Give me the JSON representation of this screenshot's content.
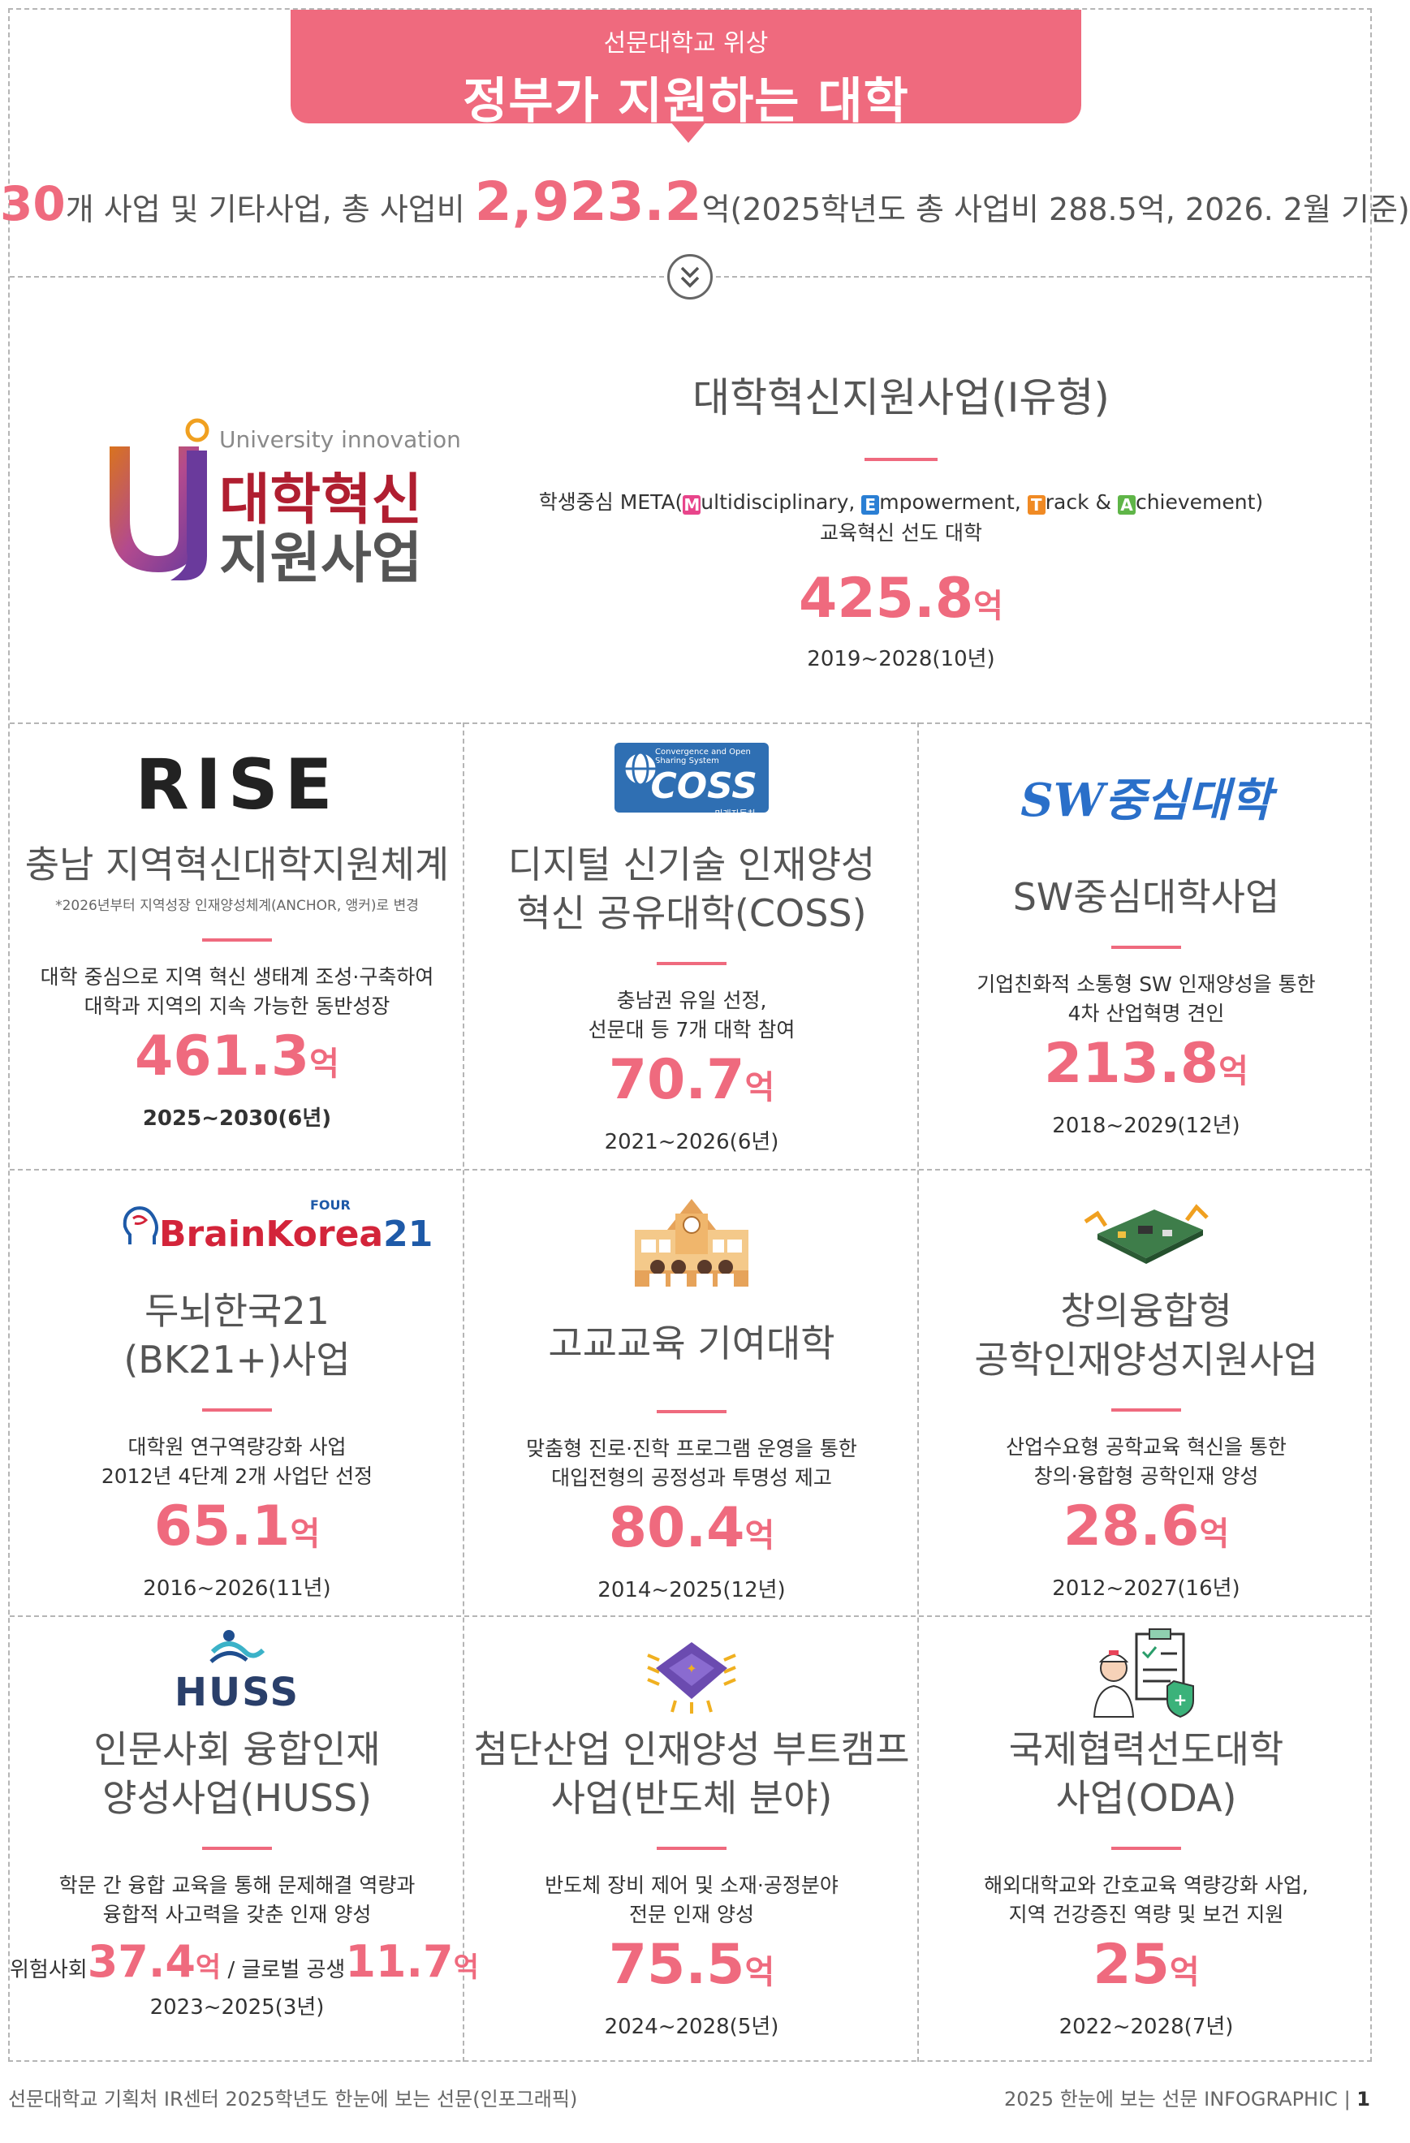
{
  "header": {
    "subtitle": "선문대학교 위상",
    "title": "정부가 지원하는 대학"
  },
  "summary": {
    "count": "30",
    "text1": "개 사업 및 기타사업, 총 사업비 ",
    "total": "2,923.2",
    "text2": "억(2025학년도 총 사업비 288.5억, 2026. 2월 기준)"
  },
  "featured": {
    "logo_sub": "University innovation",
    "logo_line1": "대학혁신",
    "logo_line2": "지원사업",
    "title": "대학혁신지원사업(I유형)",
    "desc_prefix": "학생중심 META(",
    "m_letter": "M",
    "m_rest": "ultidisciplinary, ",
    "e_letter": "E",
    "e_rest": "mpowerment, ",
    "t_letter": "T",
    "t_rest": "rack & ",
    "a_letter": "A",
    "a_rest": "chievement)",
    "desc_line2": "교육혁신 선도 대학",
    "amount": "425.8",
    "unit": "억",
    "period": "2019~2028(10년)"
  },
  "tag_colors": {
    "M": "#e8458b",
    "E": "#2a7fd4",
    "T": "#f08a24",
    "A": "#5fb548"
  },
  "programs": [
    {
      "logo_text": "RISE",
      "title": "충남 지역혁신대학지원체계",
      "note": "*2026년부터 지역성장 인재양성체계(ANCHOR, 앵커)로 변경",
      "desc": [
        "대학 중심으로 지역 혁신 생태계 조성·구축하여",
        "대학과 지역의 지속 가능한 동반성장"
      ],
      "amount": "461.3",
      "unit": "억",
      "period": "2025~2030(6년)"
    },
    {
      "logo_text": "COSS",
      "logo_top": "Convergence and Open Sharing System",
      "logo_bottom": "미래자동차",
      "title": [
        "디지털 신기술 인재양성",
        "혁신 공유대학(COSS)"
      ],
      "desc": [
        "충남권 유일 선정,",
        "선문대 등 7개 대학 참여"
      ],
      "amount": "70.7",
      "unit": "억",
      "period": "2021~2026(6년)"
    },
    {
      "logo_text": "SW중심대학",
      "title": "SW중심대학사업",
      "desc": [
        "기업친화적 소통형 SW 인재양성을 통한",
        "4차 산업혁명 견인"
      ],
      "amount": "213.8",
      "unit": "억",
      "period": "2018~2029(12년)"
    },
    {
      "logo_text": "BrainKorea",
      "logo_num": "21",
      "logo_four": "FOUR",
      "title": [
        "두뇌한국21",
        "(BK21+)사업"
      ],
      "desc": [
        "대학원 연구역량강화 사업",
        "2012년 4단계 2개 사업단 선정"
      ],
      "amount": "65.1",
      "unit": "억",
      "period": "2016~2026(11년)"
    },
    {
      "title": "고교교육 기여대학",
      "desc": [
        "맞춤형 진로·진학 프로그램 운영을 통한",
        "대입전형의 공정성과 투명성 제고"
      ],
      "amount": "80.4",
      "unit": "억",
      "period": "2014~2025(12년)"
    },
    {
      "title": [
        "창의융합형",
        "공학인재양성지원사업"
      ],
      "desc": [
        "산업수요형 공학교육 혁신을 통한",
        "창의·융합형 공학인재 양성"
      ],
      "amount": "28.6",
      "unit": "억",
      "period": "2012~2027(16년)"
    },
    {
      "logo_text": "HUSS",
      "title": [
        "인문사회 융합인재",
        "양성사업(HUSS)"
      ],
      "desc": [
        "학문 간 융합 교육을 통해 문제해결 역량과",
        "융합적 사고력을 갖춘 인재 양성"
      ],
      "label1": "위험사회",
      "amount1": "37.4",
      "unit": "억",
      "sep": " / 글로벌 공생",
      "amount2": "11.7",
      "period": "2023~2025(3년)"
    },
    {
      "title": [
        "첨단산업 인재양성 부트캠프",
        "사업(반도체 분야)"
      ],
      "desc": [
        "반도체 장비 제어 및 소재·공정분야",
        "전문 인재 양성"
      ],
      "amount": "75.5",
      "unit": "억",
      "period": "2024~2028(5년)"
    },
    {
      "title": [
        "국제협력선도대학",
        "사업(ODA)"
      ],
      "desc": [
        "해외대학교와 간호교육 역량강화 사업,",
        "지역 건강증진 역량 및 보건 지원"
      ],
      "amount": "25",
      "unit": "억",
      "period": "2022~2028(7년)"
    }
  ],
  "footer": {
    "left": "선문대학교 기획처 IR센터 2025학년도 한눈에 보는 선문(인포그래픽)",
    "right": "2025 한눈에 보는 선문 INFOGRAPHIC",
    "sep": " | ",
    "page": "1"
  },
  "icons": [
    "double-chevron-down-icon",
    "uj-logo-icon",
    "school-building-icon",
    "circuit-board-icon",
    "chip-icon",
    "nurse-clipboard-icon",
    "brain-head-icon",
    "globe-icon",
    "huss-figure-icon"
  ]
}
